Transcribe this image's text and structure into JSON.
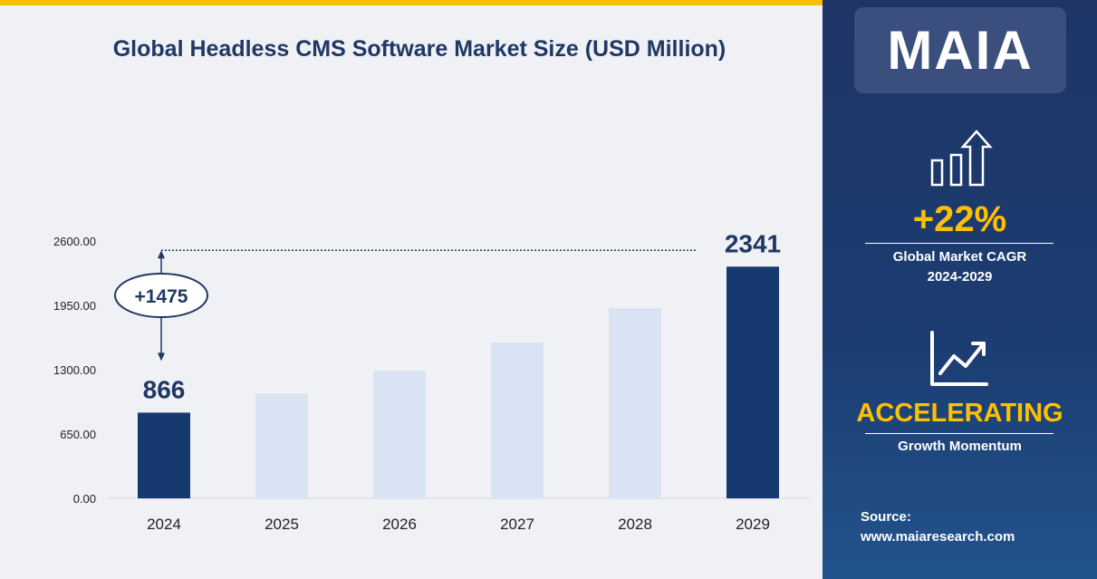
{
  "chart_data": {
    "type": "bar",
    "title": "Global Headless CMS Software Market Size (USD  Million)",
    "categories": [
      "2024",
      "2025",
      "2026",
      "2027",
      "2028",
      "2029"
    ],
    "values": [
      866,
      1057,
      1290,
      1574,
      1921,
      2341
    ],
    "highlighted": [
      "2024",
      "2029"
    ],
    "data_labels": {
      "2024": "866",
      "2029": "2341"
    },
    "ylim": [
      0,
      2600
    ],
    "yticks": [
      "0.00",
      "650.00",
      "1300.00",
      "1950.00",
      "2600.00"
    ],
    "ytick_values": [
      0,
      650,
      1300,
      1950,
      2600
    ],
    "annotation": "+1475",
    "xlabel": "",
    "ylabel": "",
    "grid": false,
    "colors": {
      "highlight": "#163a70",
      "normal": "#dae3f3"
    }
  },
  "panel": {
    "logo": "MAIA",
    "cagr_value": "+22%",
    "cagr_label": "Global Market CAGR",
    "cagr_period": "2024-2029",
    "momentum_value": "ACCELERATING",
    "momentum_label": "Growth Momentum",
    "source_label": "Source:",
    "source_url": "www.maiaresearch.com"
  }
}
